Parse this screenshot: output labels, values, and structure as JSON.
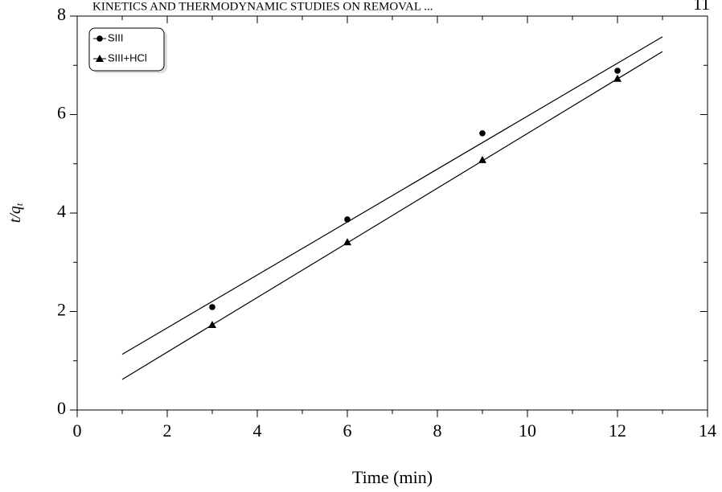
{
  "header": {
    "running_title": "KINETICS AND THERMODYNAMIC STUDIES ON REMOVAL ...",
    "page_number": "11"
  },
  "chart_data": {
    "type": "scatter",
    "xlabel": "Time (min)",
    "ylabel": "t/q",
    "ylabel_subscript": "t",
    "xlim": [
      0,
      14
    ],
    "xticks": [
      0,
      2,
      4,
      6,
      8,
      10,
      12,
      14
    ],
    "xminorticks": [
      1,
      3,
      5,
      7,
      9,
      11,
      13
    ],
    "ylim": [
      0,
      8
    ],
    "yticks": [
      0,
      2,
      4,
      6,
      8
    ],
    "yminorticks": [
      1,
      3,
      5,
      7
    ],
    "legend": "upper-left",
    "series": [
      {
        "name": "SIII",
        "color": "#000000",
        "marker": "circle",
        "x": [
          3,
          6,
          9,
          12
        ],
        "values": [
          2.09,
          3.87,
          5.62,
          6.89
        ]
      },
      {
        "name": "SIII+HCl",
        "color": "#000000",
        "marker": "triangle",
        "x": [
          3,
          6,
          9,
          12
        ],
        "values": [
          1.73,
          3.41,
          5.08,
          6.73
        ]
      }
    ],
    "fit_lines": [
      {
        "color": "#000000",
        "x": [
          1,
          13
        ],
        "values": [
          1.13,
          7.58
        ]
      },
      {
        "color": "#000000",
        "x": [
          1,
          13
        ],
        "values": [
          0.62,
          7.28
        ]
      }
    ]
  }
}
